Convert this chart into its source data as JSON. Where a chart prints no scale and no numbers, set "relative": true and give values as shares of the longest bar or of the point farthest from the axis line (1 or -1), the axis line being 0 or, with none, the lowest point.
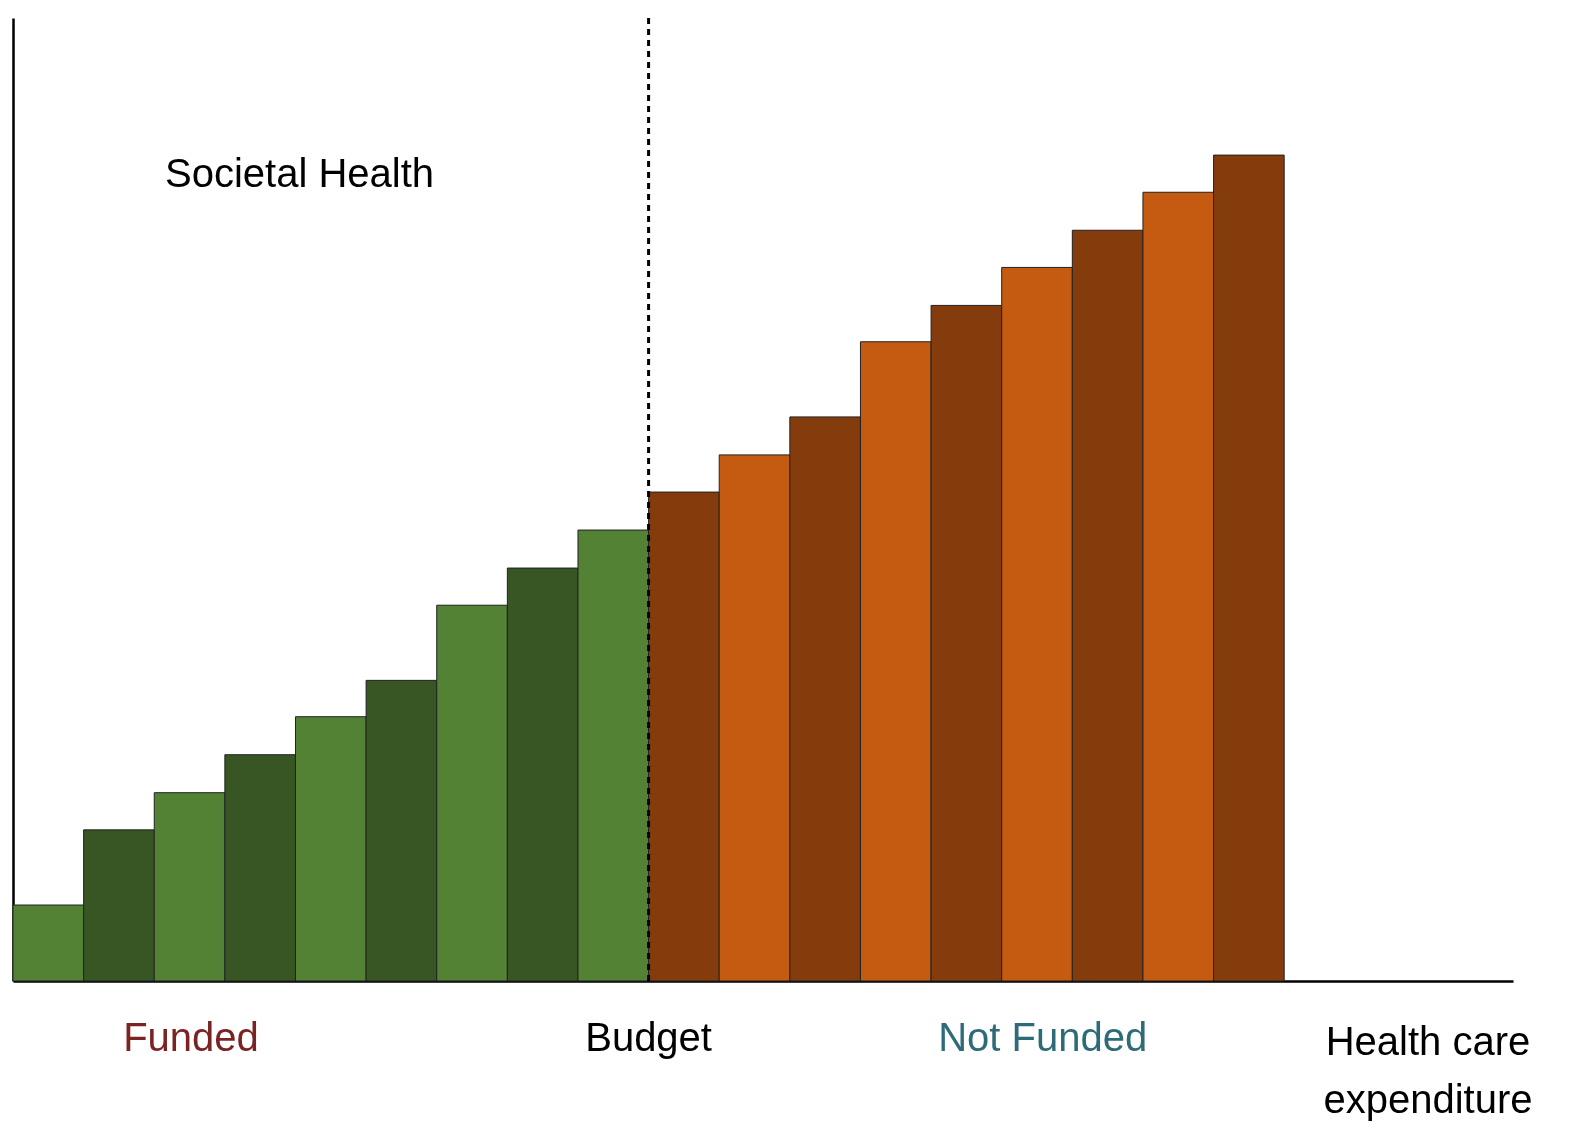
{
  "chart_data": {
    "type": "bar",
    "relative": true,
    "ylabel": "Societal Health",
    "xlabel": "Health care expenditure",
    "categories": [
      null,
      null,
      null,
      null,
      null,
      null,
      null,
      null,
      null,
      null,
      null,
      null,
      null,
      null,
      null,
      null,
      null,
      null
    ],
    "values": [
      0.092,
      0.183,
      0.228,
      0.274,
      0.32,
      0.364,
      0.455,
      0.5,
      0.546,
      0.592,
      0.637,
      0.683,
      0.774,
      0.818,
      0.864,
      0.909,
      0.955,
      1
    ],
    "colors": [
      "#548235",
      "#375623",
      "#548235",
      "#375623",
      "#548235",
      "#375623",
      "#548235",
      "#375623",
      "#548235",
      "#843c0c",
      "#c55a11",
      "#843c0c",
      "#c55a11",
      "#843c0c",
      "#c55a11",
      "#843c0c",
      "#c55a11",
      "#843c0c"
    ],
    "annotations": [
      "Funded",
      "Budget",
      "Not Funded"
    ],
    "grid": false,
    "tick_labels": false
  }
}
